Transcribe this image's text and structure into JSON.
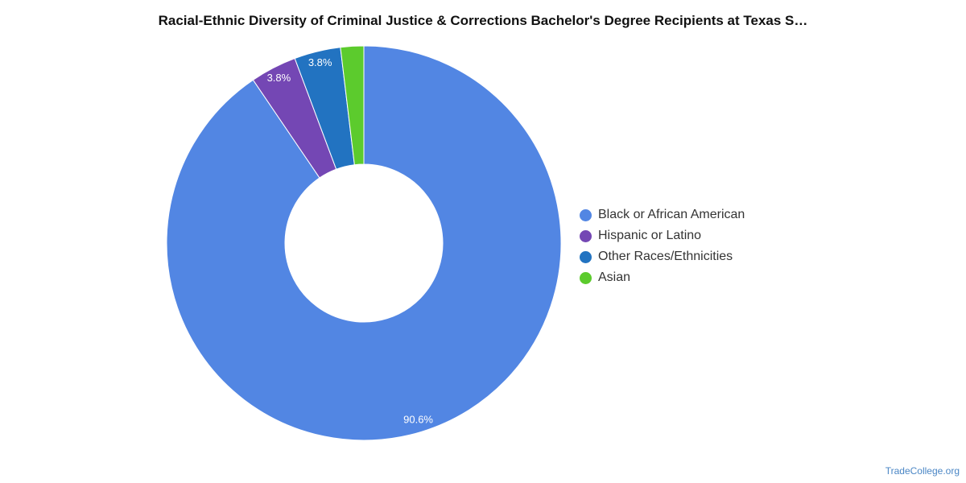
{
  "title": "Racial-Ethnic Diversity of Criminal Justice & Corrections Bachelor's Degree Recipients at Texas S…",
  "watermark": "TradeCollege.org",
  "chart_data": {
    "type": "pie",
    "donut": true,
    "title": "Racial-Ethnic Diversity of Criminal Justice & Corrections Bachelor's Degree Recipients at Texas S…",
    "legend_position": "right",
    "slices": [
      {
        "label": "Black or African American",
        "value": 90.6,
        "data_label": "90.6%",
        "color": "#5286e3"
      },
      {
        "label": "Hispanic or Latino",
        "value": 3.8,
        "data_label": "3.8%",
        "color": "#7447b4"
      },
      {
        "label": "Other Races/Ethnicities",
        "value": 3.8,
        "data_label": "3.8%",
        "color": "#2273c1"
      },
      {
        "label": "Asian",
        "value": 1.9,
        "data_label": "",
        "color": "#5ccb2d"
      }
    ]
  }
}
